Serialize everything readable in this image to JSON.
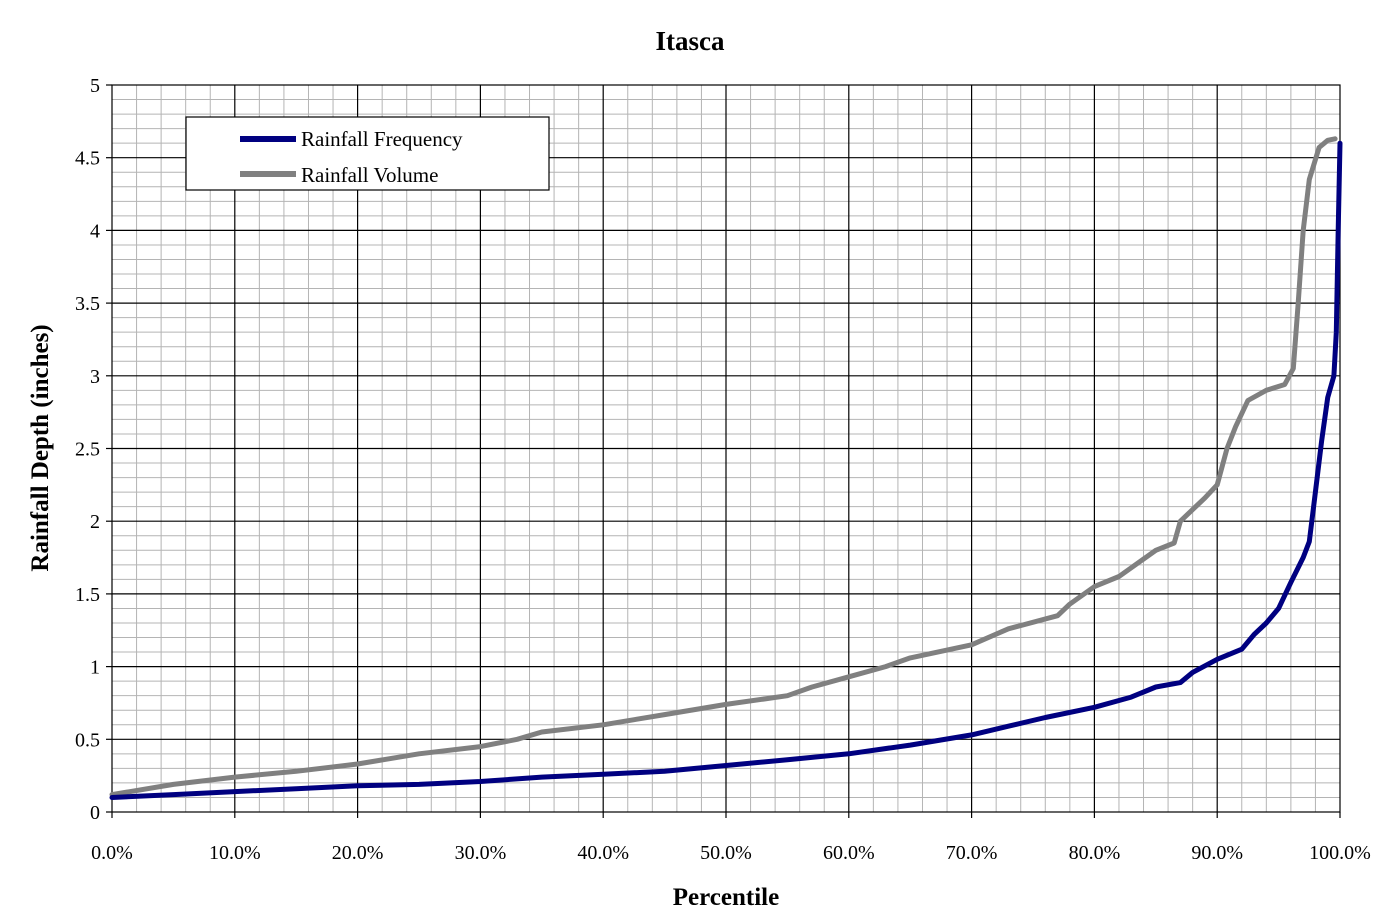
{
  "chart_data": {
    "type": "line",
    "title": "Itasca",
    "xlabel": "Percentile",
    "ylabel": "Rainfall Depth (inches)",
    "xlim": [
      0,
      100
    ],
    "ylim": [
      0,
      5
    ],
    "x_major_step": 10,
    "x_minor_step": 2,
    "y_major_step": 0.5,
    "y_minor_step": 0.1,
    "x_tick_labels": [
      "0.0%",
      "10.0%",
      "20.0%",
      "30.0%",
      "40.0%",
      "50.0%",
      "60.0%",
      "70.0%",
      "80.0%",
      "90.0%",
      "100.0%"
    ],
    "y_tick_labels": [
      "0",
      "0.5",
      "1",
      "1.5",
      "2",
      "2.5",
      "3",
      "3.5",
      "4",
      "4.5",
      "5"
    ],
    "grid": true,
    "legend_position": "top-left",
    "series": [
      {
        "name": "Rainfall Frequency",
        "color": "#000080",
        "points": [
          [
            0,
            0.1
          ],
          [
            5,
            0.12
          ],
          [
            10,
            0.14
          ],
          [
            15,
            0.16
          ],
          [
            20,
            0.18
          ],
          [
            25,
            0.19
          ],
          [
            30,
            0.21
          ],
          [
            35,
            0.24
          ],
          [
            40,
            0.26
          ],
          [
            45,
            0.28
          ],
          [
            50,
            0.32
          ],
          [
            55,
            0.36
          ],
          [
            60,
            0.4
          ],
          [
            65,
            0.46
          ],
          [
            70,
            0.53
          ],
          [
            73,
            0.59
          ],
          [
            76,
            0.65
          ],
          [
            80,
            0.72
          ],
          [
            83,
            0.79
          ],
          [
            85,
            0.86
          ],
          [
            87,
            0.89
          ],
          [
            88,
            0.96
          ],
          [
            90,
            1.05
          ],
          [
            92,
            1.12
          ],
          [
            93,
            1.22
          ],
          [
            94,
            1.3
          ],
          [
            95,
            1.4
          ],
          [
            96,
            1.58
          ],
          [
            97,
            1.75
          ],
          [
            97.5,
            1.86
          ],
          [
            98,
            2.2
          ],
          [
            98.5,
            2.55
          ],
          [
            99,
            2.85
          ],
          [
            99.5,
            3.0
          ],
          [
            99.7,
            3.3
          ],
          [
            99.85,
            4.0
          ],
          [
            100,
            4.6
          ]
        ]
      },
      {
        "name": "Rainfall Volume",
        "color": "#808080",
        "points": [
          [
            0,
            0.12
          ],
          [
            5,
            0.19
          ],
          [
            10,
            0.24
          ],
          [
            15,
            0.28
          ],
          [
            20,
            0.33
          ],
          [
            25,
            0.4
          ],
          [
            30,
            0.45
          ],
          [
            33,
            0.5
          ],
          [
            35,
            0.55
          ],
          [
            40,
            0.6
          ],
          [
            45,
            0.67
          ],
          [
            50,
            0.74
          ],
          [
            55,
            0.8
          ],
          [
            57,
            0.86
          ],
          [
            60,
            0.93
          ],
          [
            63,
            1.0
          ],
          [
            65,
            1.06
          ],
          [
            70,
            1.15
          ],
          [
            73,
            1.26
          ],
          [
            77,
            1.35
          ],
          [
            78,
            1.43
          ],
          [
            80,
            1.55
          ],
          [
            82,
            1.62
          ],
          [
            85,
            1.8
          ],
          [
            86.5,
            1.85
          ],
          [
            87,
            2.0
          ],
          [
            88,
            2.08
          ],
          [
            89,
            2.16
          ],
          [
            90,
            2.25
          ],
          [
            90.8,
            2.5
          ],
          [
            91.5,
            2.65
          ],
          [
            92.5,
            2.83
          ],
          [
            94,
            2.9
          ],
          [
            95.5,
            2.94
          ],
          [
            96.2,
            3.05
          ],
          [
            96.6,
            3.5
          ],
          [
            97,
            4.0
          ],
          [
            97.5,
            4.35
          ],
          [
            98.3,
            4.57
          ],
          [
            99,
            4.62
          ],
          [
            99.6,
            4.63
          ]
        ]
      }
    ]
  }
}
